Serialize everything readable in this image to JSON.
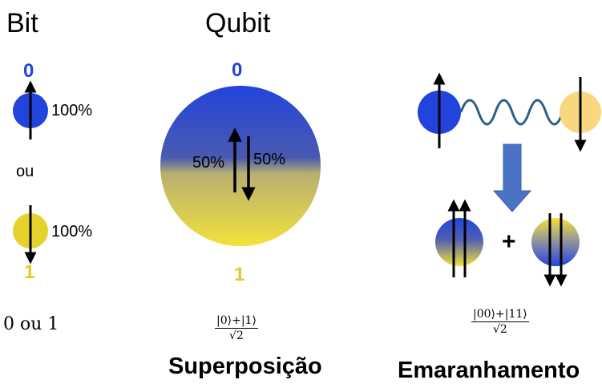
{
  "colors": {
    "blue": "#2244dd",
    "yellow": "#e6d22e",
    "light_yellow": "#f9d77e",
    "wave": "#2b5f86",
    "arrow_down_fill": "#4a73c6"
  },
  "bit": {
    "title": "Bit",
    "state_zero": "0",
    "state_one": "1",
    "prob_zero": "100%",
    "prob_one": "100%",
    "or_word": "ou",
    "caption": "0 ou 1"
  },
  "qubit": {
    "title": "Qubit",
    "state_zero": "0",
    "state_one": "1",
    "prob_up": "50%",
    "prob_down": "50%",
    "formula_numerator": "|0⟩+|1⟩",
    "formula_denominator": "√2",
    "label": "Superposição"
  },
  "entanglement": {
    "plus": "+",
    "formula_numerator": "|00⟩+|11⟩",
    "formula_denominator": "√2",
    "label": "Emaranhamento"
  }
}
